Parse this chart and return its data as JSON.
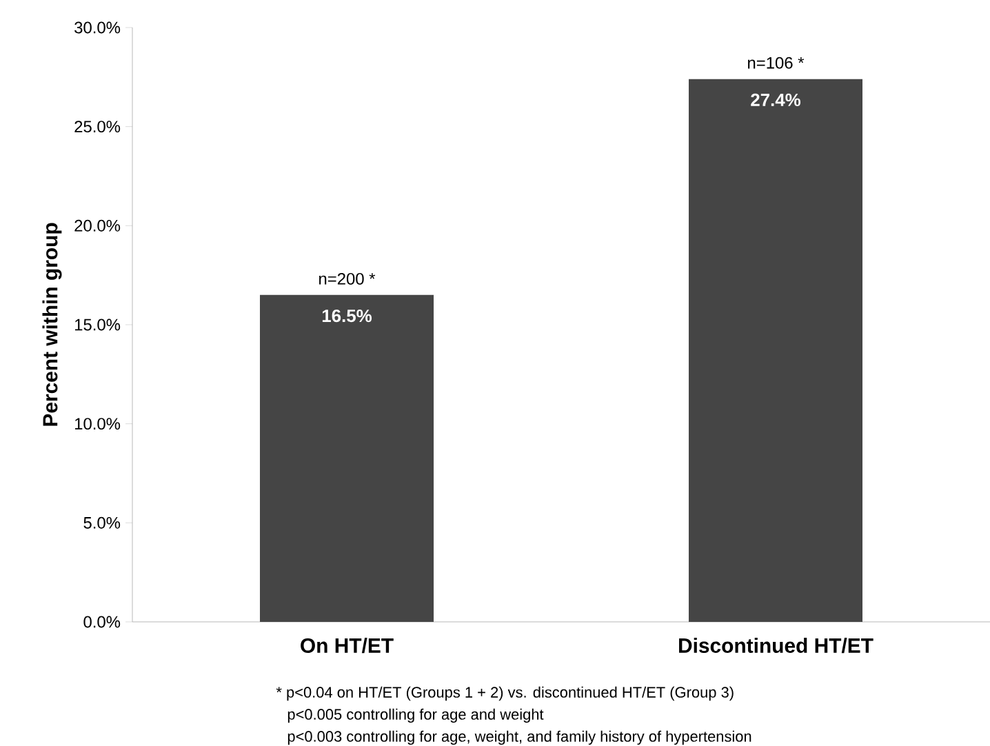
{
  "chart_data": {
    "type": "bar",
    "ylabel": "Percent within group",
    "categories": [
      "On HT/ET",
      "Discontinued HT/ET"
    ],
    "values": [
      16.5,
      27.4
    ],
    "value_labels": [
      "16.5%",
      "27.4%"
    ],
    "color": "#454545",
    "ylim": [
      0,
      30
    ],
    "yticks": [
      {
        "value": 0,
        "label": "0.0%"
      },
      {
        "value": 5,
        "label": "5.0%"
      },
      {
        "value": 10,
        "label": "10.0%"
      },
      {
        "value": 15,
        "label": "15.0%"
      },
      {
        "value": 20,
        "label": "20.0%"
      },
      {
        "value": 25,
        "label": "25.0%"
      },
      {
        "value": 30,
        "label": "30.0%"
      }
    ],
    "annotations": [
      {
        "text": "n=200 *",
        "x": "On HT/ET",
        "y": 16.5
      },
      {
        "text": "n=106 *",
        "x": "Discontinued HT/ET",
        "y": 27.4
      },
      "* p<0.04 on HT/ET (Groups 1 + 2) vs. discontinued HT/ET (Group 3)",
      "p<0.005 controlling for age and weight",
      "p<0.003 controlling for age, weight, and family history of hypertension"
    ],
    "grid": false
  }
}
